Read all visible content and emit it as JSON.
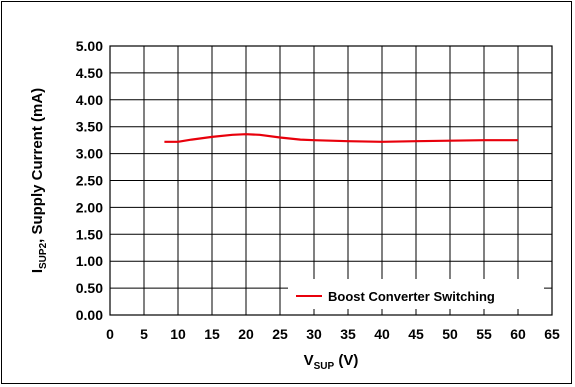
{
  "chart_data": {
    "type": "line",
    "xlabel_main": "V",
    "xlabel_sub": "SUP",
    "xlabel_unit": " (V)",
    "ylabel_main": "I",
    "ylabel_sub": "SUP2",
    "ylabel_rest": ", Supply Current (mA)",
    "xlim": [
      0,
      65
    ],
    "ylim": [
      0,
      5
    ],
    "x_ticks": [
      "0",
      "5",
      "10",
      "15",
      "20",
      "25",
      "30",
      "35",
      "40",
      "45",
      "50",
      "55",
      "60",
      "65"
    ],
    "y_ticks": [
      "0.00",
      "0.50",
      "1.00",
      "1.50",
      "2.00",
      "2.50",
      "3.00",
      "3.50",
      "4.00",
      "4.50",
      "5.00"
    ],
    "grid": true,
    "legend_position": "bottom-right",
    "series": [
      {
        "name": "Boost Converter Switching",
        "color": "#e8000b",
        "x": [
          8,
          10,
          12,
          15,
          18,
          20,
          22,
          25,
          28,
          30,
          35,
          40,
          45,
          50,
          55,
          60
        ],
        "y": [
          3.22,
          3.22,
          3.26,
          3.31,
          3.35,
          3.36,
          3.35,
          3.3,
          3.26,
          3.25,
          3.23,
          3.22,
          3.23,
          3.24,
          3.25,
          3.25
        ]
      }
    ]
  }
}
